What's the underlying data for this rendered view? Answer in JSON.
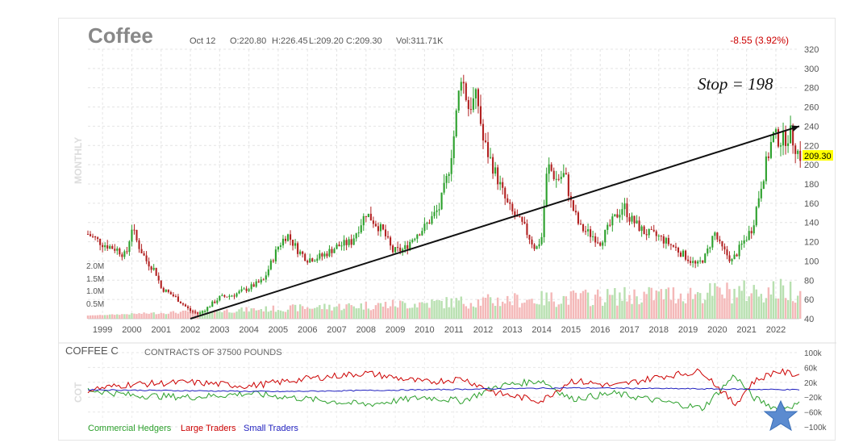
{
  "header": {
    "symbol": "Coffee",
    "date": "Oct 12",
    "open": "O:220.80",
    "high": "H:226.45",
    "low": "L:209.20",
    "close": "C:209.30",
    "volume": "Vol:311.71K",
    "change": "-8.55 (3.92%)",
    "period": "MONTHLY",
    "last_price": "209.30",
    "annotation": "Stop = 198"
  },
  "cot": {
    "symbol": "COFFEE C",
    "contract": "CONTRACTS OF 37500 POUNDS",
    "side_label": "COT",
    "y_ticks": [
      "100k",
      "60k",
      "20k",
      "−20k",
      "−60k",
      "−100k"
    ],
    "legend": [
      {
        "label": "Commercial Hedgers",
        "color": "#2ca02c"
      },
      {
        "label": "Large Traders",
        "color": "#cc0000"
      },
      {
        "label": "Small Traders",
        "color": "#1f1fbf"
      }
    ]
  },
  "colors": {
    "up": "#2ca02c",
    "down": "#b22222",
    "vol_up": "#b8e0b0",
    "vol_down": "#f4b8b8",
    "last_price_bg": "#ffff00"
  },
  "chart_data": {
    "type": "candlestick",
    "title": "Coffee",
    "x_ticks": [
      "1999",
      "2000",
      "2001",
      "2002",
      "2003",
      "2004",
      "2005",
      "2006",
      "2007",
      "2008",
      "2009",
      "2010",
      "2011",
      "2012",
      "2013",
      "2014",
      "2015",
      "2016",
      "2017",
      "2018",
      "2019",
      "2020",
      "2021",
      "2022"
    ],
    "y_ticks": [
      40,
      60,
      80,
      100,
      120,
      140,
      160,
      180,
      200,
      220,
      240,
      260,
      280,
      300,
      320
    ],
    "ylim": [
      40,
      320
    ],
    "volume_ticks": [
      "2.0M",
      "1.5M",
      "1.0M",
      "0.5M"
    ],
    "year_range": [
      1998.5,
      2022.8
    ],
    "close_path": [
      [
        1998.5,
        128
      ],
      [
        1999.0,
        118
      ],
      [
        1999.5,
        112
      ],
      [
        1999.8,
        105
      ],
      [
        2000.0,
        135
      ],
      [
        2000.2,
        118
      ],
      [
        2000.5,
        100
      ],
      [
        2000.8,
        90
      ],
      [
        2001.0,
        72
      ],
      [
        2001.5,
        62
      ],
      [
        2002.0,
        48
      ],
      [
        2002.3,
        45
      ],
      [
        2002.6,
        52
      ],
      [
        2003.0,
        62
      ],
      [
        2003.5,
        65
      ],
      [
        2004.0,
        72
      ],
      [
        2004.5,
        80
      ],
      [
        2005.0,
        115
      ],
      [
        2005.3,
        128
      ],
      [
        2005.7,
        110
      ],
      [
        2006.0,
        102
      ],
      [
        2006.5,
        105
      ],
      [
        2007.0,
        115
      ],
      [
        2007.5,
        120
      ],
      [
        2008.0,
        150
      ],
      [
        2008.3,
        140
      ],
      [
        2008.6,
        130
      ],
      [
        2008.9,
        110
      ],
      [
        2009.3,
        112
      ],
      [
        2009.7,
        128
      ],
      [
        2010.0,
        135
      ],
      [
        2010.5,
        155
      ],
      [
        2010.8,
        190
      ],
      [
        2011.0,
        230
      ],
      [
        2011.25,
        295
      ],
      [
        2011.5,
        260
      ],
      [
        2011.8,
        270
      ],
      [
        2012.0,
        225
      ],
      [
        2012.5,
        185
      ],
      [
        2012.8,
        160
      ],
      [
        2013.0,
        150
      ],
      [
        2013.4,
        135
      ],
      [
        2013.8,
        112
      ],
      [
        2014.0,
        125
      ],
      [
        2014.2,
        200
      ],
      [
        2014.5,
        185
      ],
      [
        2014.8,
        190
      ],
      [
        2015.0,
        160
      ],
      [
        2015.3,
        135
      ],
      [
        2015.8,
        125
      ],
      [
        2016.0,
        120
      ],
      [
        2016.4,
        140
      ],
      [
        2016.8,
        158
      ],
      [
        2017.0,
        145
      ],
      [
        2017.5,
        130
      ],
      [
        2018.0,
        125
      ],
      [
        2018.5,
        115
      ],
      [
        2018.9,
        105
      ],
      [
        2019.3,
        95
      ],
      [
        2019.6,
        105
      ],
      [
        2019.9,
        130
      ],
      [
        2020.1,
        115
      ],
      [
        2020.5,
        100
      ],
      [
        2020.9,
        120
      ],
      [
        2021.2,
        135
      ],
      [
        2021.5,
        180
      ],
      [
        2021.9,
        230
      ],
      [
        2022.2,
        225
      ],
      [
        2022.5,
        232
      ],
      [
        2022.8,
        209.3
      ]
    ],
    "trendline": {
      "start": [
        2002.0,
        40
      ],
      "end": [
        2022.8,
        240
      ]
    },
    "last_close": 209.3,
    "stop": 198,
    "cot": {
      "ylim": [
        -100000,
        100000
      ],
      "series": [
        {
          "name": "Commercial Hedgers",
          "points": [
            [
              1998.5,
              0
            ],
            [
              2000,
              -15000
            ],
            [
              2002,
              -20000
            ],
            [
              2004,
              -10000
            ],
            [
              2006,
              -25000
            ],
            [
              2008,
              -40000
            ],
            [
              2010,
              -20000
            ],
            [
              2011.3,
              -30000
            ],
            [
              2012.5,
              10000
            ],
            [
              2014,
              25000
            ],
            [
              2015,
              -25000
            ],
            [
              2016.5,
              -10000
            ],
            [
              2018,
              -30000
            ],
            [
              2019.5,
              -50000
            ],
            [
              2020.6,
              40000
            ],
            [
              2021.2,
              -20000
            ],
            [
              2022,
              -50000
            ],
            [
              2022.8,
              -40000
            ]
          ]
        },
        {
          "name": "Large Traders",
          "points": [
            [
              1998.5,
              0
            ],
            [
              2000,
              15000
            ],
            [
              2002,
              20000
            ],
            [
              2004,
              10000
            ],
            [
              2006,
              30000
            ],
            [
              2008,
              45000
            ],
            [
              2010,
              20000
            ],
            [
              2011.3,
              30000
            ],
            [
              2012.5,
              -10000
            ],
            [
              2014,
              -30000
            ],
            [
              2015,
              25000
            ],
            [
              2016.5,
              10000
            ],
            [
              2018,
              35000
            ],
            [
              2019.5,
              50000
            ],
            [
              2020.6,
              -40000
            ],
            [
              2021.2,
              20000
            ],
            [
              2022,
              50000
            ],
            [
              2022.8,
              40000
            ]
          ]
        },
        {
          "name": "Small Traders",
          "points": [
            [
              1998.5,
              0
            ],
            [
              2005,
              -5000
            ],
            [
              2010,
              0
            ],
            [
              2015,
              5000
            ],
            [
              2020,
              2000
            ],
            [
              2022.8,
              0
            ]
          ]
        }
      ]
    }
  }
}
